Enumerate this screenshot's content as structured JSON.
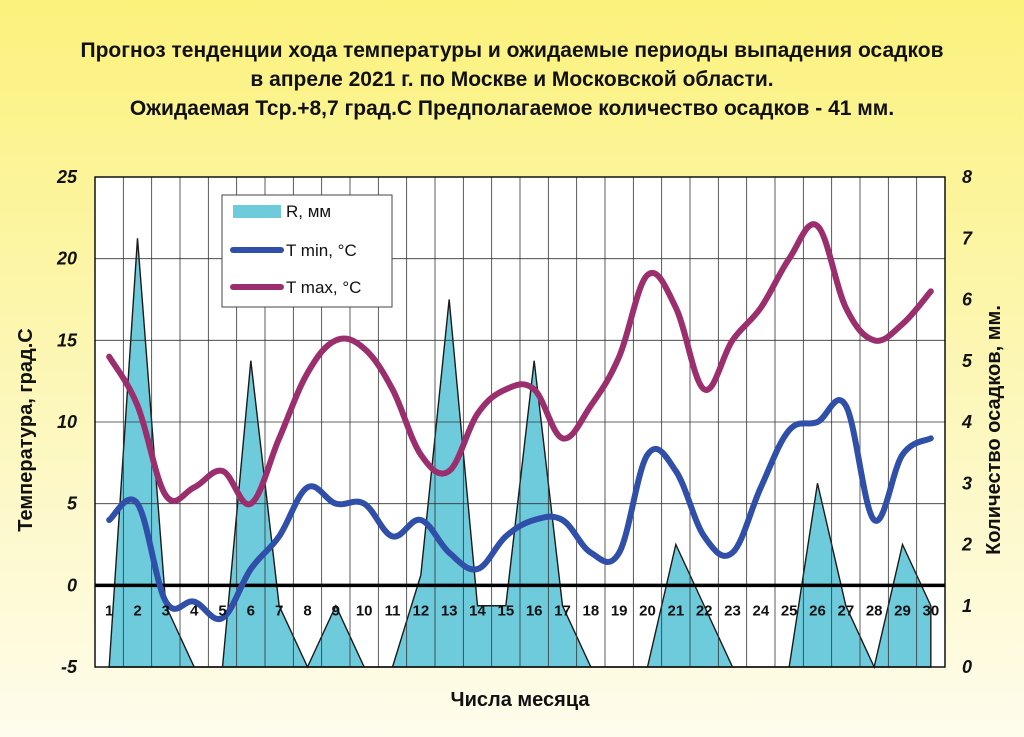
{
  "title": {
    "line1": "Прогноз тенденции хода температуры и ожидаемые периоды выпадения осадков",
    "line2": "в апреле 2021 г. по Москве и Московской области.",
    "line3": "Ожидаемая Тср.+8,7 град.С Предполагаемое количество осадков - 41 мм."
  },
  "colors": {
    "precip_fill": "#6ecbdc",
    "tmin": "#2f4fa8",
    "tmax": "#9b2f6e",
    "grid": "#333333",
    "plot_bg": "#ffffff"
  },
  "chart_data": {
    "type": "line",
    "title": "Прогноз тенденции хода температуры и ожидаемые периоды выпадения осадков в апреле 2021 г. по Москве и Московской области.",
    "xlabel": "Числа месяца",
    "ylabel_left": "Температура, град.С",
    "ylabel_right": "Количество осадков, мм.",
    "x": [
      1,
      2,
      3,
      4,
      5,
      6,
      7,
      8,
      9,
      10,
      11,
      12,
      13,
      14,
      15,
      16,
      17,
      18,
      19,
      20,
      21,
      22,
      23,
      24,
      25,
      26,
      27,
      28,
      29,
      30
    ],
    "x_tick_labels": [
      "1",
      "2",
      "3",
      "4",
      "5",
      "6",
      "7",
      "8",
      "9",
      "10",
      "11",
      "12",
      "13",
      "14",
      "15",
      "16",
      "17",
      "18",
      "19",
      "20",
      "21",
      "22",
      "23",
      "24",
      "25",
      "26",
      "27",
      "28",
      "29",
      "30"
    ],
    "ylim_left": [
      -5,
      25
    ],
    "yticks_left": [
      "25",
      "20",
      "15",
      "10",
      "5",
      "0",
      "-5"
    ],
    "ylim_right": [
      0,
      8
    ],
    "yticks_right": [
      "8",
      "7",
      "6",
      "5",
      "4",
      "3",
      "2",
      "1",
      "0"
    ],
    "grid": true,
    "legend_position": "top-left",
    "series": [
      {
        "name": "R, мм",
        "kind": "area",
        "axis": "right",
        "values": [
          0,
          7.0,
          1.0,
          0,
          0,
          5.0,
          1.0,
          0,
          1.0,
          0,
          0,
          1.5,
          6.0,
          1.0,
          1.0,
          5.0,
          1.0,
          0,
          0,
          0,
          2.0,
          1.0,
          0,
          0,
          0,
          3.0,
          1.0,
          0,
          2.0,
          1.0
        ]
      },
      {
        "name": "T min, °C",
        "kind": "line",
        "axis": "left",
        "values": [
          4.0,
          5.0,
          -1.0,
          -1.0,
          -2.0,
          1.0,
          3.0,
          6.0,
          5.0,
          5.0,
          3.0,
          4.0,
          2.0,
          1.0,
          3.0,
          4.0,
          4.0,
          2.0,
          2.0,
          8.0,
          7.0,
          3.0,
          2.0,
          6.0,
          9.5,
          10.0,
          11.0,
          4.0,
          8.0,
          9.0
        ]
      },
      {
        "name": "T max, °C",
        "kind": "line",
        "axis": "left",
        "values": [
          14.0,
          11.0,
          5.5,
          6.0,
          7.0,
          5.0,
          9.0,
          13.0,
          15.0,
          14.5,
          12.0,
          8.0,
          7.0,
          10.5,
          12.0,
          12.0,
          9.0,
          11.0,
          14.0,
          19.0,
          17.0,
          12.0,
          15.0,
          17.0,
          20.0,
          22.0,
          17.0,
          15.0,
          16.0,
          18.0
        ]
      }
    ]
  }
}
